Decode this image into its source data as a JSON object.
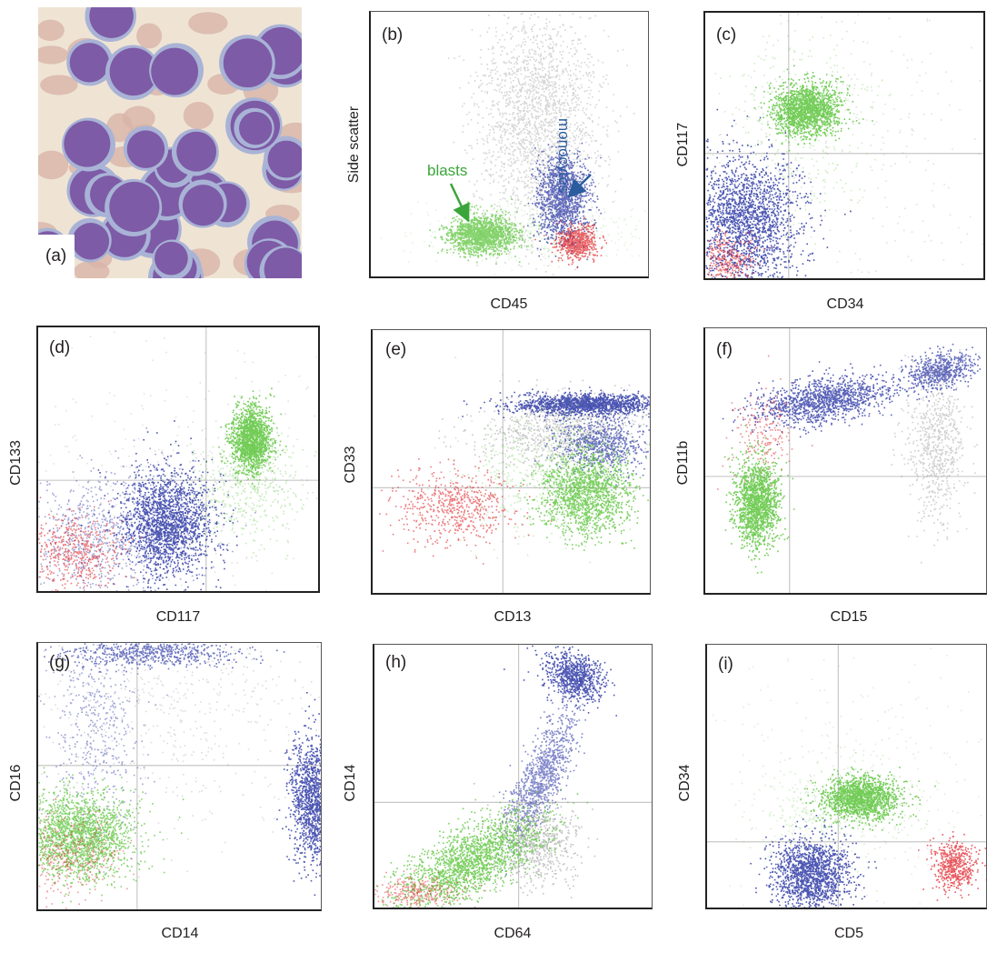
{
  "figure": {
    "micro_label": "(a)",
    "panels": [
      {
        "id": "b",
        "label": "(b)",
        "xlabel": "CD45",
        "ylabel": "Side scatter",
        "annotations": {
          "blasts": "blasts",
          "monocytes": "monocytes"
        }
      },
      {
        "id": "c",
        "label": "(c)",
        "xlabel": "CD34",
        "ylabel": "CD117"
      },
      {
        "id": "d",
        "label": "(d)",
        "xlabel": "CD117",
        "ylabel": "CD133"
      },
      {
        "id": "e",
        "label": "(e)",
        "xlabel": "CD13",
        "ylabel": "CD33"
      },
      {
        "id": "f",
        "label": "(f)",
        "xlabel": "CD15",
        "ylabel": "CD11b"
      },
      {
        "id": "g",
        "label": "(g)",
        "xlabel": "CD14",
        "ylabel": "CD16"
      },
      {
        "id": "h",
        "label": "(h)",
        "xlabel": "CD64",
        "ylabel": "CD14"
      },
      {
        "id": "i",
        "label": "(i)",
        "xlabel": "CD5",
        "ylabel": "CD34"
      }
    ],
    "colors": {
      "blasts": "#5cc43c",
      "monocytes": "#2e3aa6",
      "granulocytes": "#8a8a8a",
      "lymphocytes": "#e0232a",
      "monocytes_label": "#2a5c9e",
      "blasts_label": "#3aa53a"
    }
  }
}
